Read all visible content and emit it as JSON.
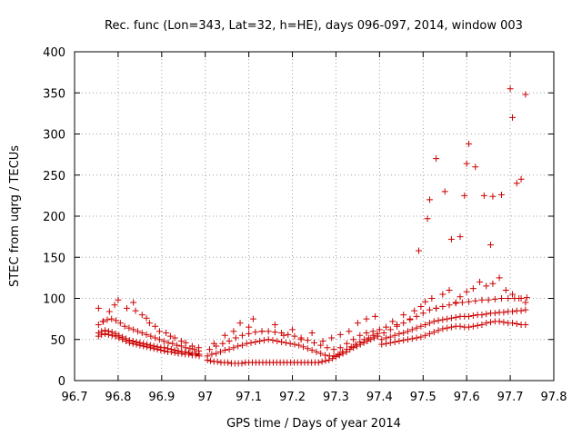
{
  "chart_data": {
    "type": "scatter",
    "title": "Rec. func (Lon=343, Lat=32, h=HE), days 096-097, 2014, window 003",
    "xlabel": "GPS time / Days of year 2014",
    "ylabel": "STEC from uqrg / TECUs",
    "xlim": [
      96.7,
      97.8
    ],
    "ylim": [
      0,
      400
    ],
    "xticks": [
      "96.7",
      "96.8",
      "96.9",
      "97",
      "97.1",
      "97.2",
      "97.3",
      "97.4",
      "97.5",
      "97.6",
      "97.7",
      "97.8"
    ],
    "yticks": [
      "0",
      "50",
      "100",
      "150",
      "200",
      "250",
      "300",
      "350",
      "400"
    ],
    "grid": true,
    "marker": "+",
    "color": "#cc0000",
    "series": [
      {
        "x": [
          96.755,
          96.762,
          96.77,
          96.778,
          96.786,
          96.794,
          96.802,
          96.81,
          96.818,
          96.826,
          96.834,
          96.842,
          96.85,
          96.858,
          96.866,
          96.874,
          96.882,
          96.89,
          96.898,
          96.906,
          96.914,
          96.922,
          96.93,
          96.938,
          96.946,
          96.954,
          96.962,
          96.97,
          96.978,
          96.986,
          96.755,
          96.762,
          96.77,
          96.778,
          96.786,
          96.794,
          96.802,
          96.81,
          96.818,
          96.826,
          96.834,
          96.842,
          96.85,
          96.858,
          96.866,
          96.874,
          96.882,
          96.89,
          96.898,
          96.906,
          96.914,
          96.922,
          96.93,
          96.938,
          96.946,
          96.954,
          96.962,
          96.97,
          96.978,
          96.986,
          96.755,
          96.765,
          96.775,
          96.785,
          96.795,
          96.805,
          96.815,
          96.825,
          96.835,
          96.845,
          96.855,
          96.865,
          96.875,
          96.885,
          96.895,
          96.905,
          96.915,
          96.925,
          96.935,
          96.945,
          96.955,
          96.965,
          96.975,
          96.985,
          96.755,
          96.766,
          96.78,
          96.792,
          96.8,
          96.82,
          96.835,
          96.84,
          96.855,
          96.865,
          96.872,
          96.885,
          96.895,
          96.91,
          96.92,
          96.93,
          96.945,
          96.955,
          96.97,
          96.985,
          97.005,
          97.012,
          97.02,
          97.028,
          97.036,
          97.044,
          97.052,
          97.06,
          97.068,
          97.076,
          97.084,
          97.092,
          97.1,
          97.108,
          97.116,
          97.124,
          97.132,
          97.14,
          97.148,
          97.156,
          97.164,
          97.172,
          97.18,
          97.188,
          97.196,
          97.204,
          97.212,
          97.22,
          97.228,
          97.236,
          97.244,
          97.252,
          97.26,
          97.268,
          97.276,
          97.284,
          97.292,
          97.3,
          97.308,
          97.316,
          97.324,
          97.332,
          97.34,
          97.348,
          97.356,
          97.364,
          97.372,
          97.38,
          97.388,
          97.396,
          97.005,
          97.015,
          97.025,
          97.035,
          97.045,
          97.055,
          97.065,
          97.075,
          97.085,
          97.095,
          97.105,
          97.115,
          97.125,
          97.135,
          97.145,
          97.155,
          97.165,
          97.175,
          97.185,
          97.195,
          97.205,
          97.215,
          97.225,
          97.235,
          97.245,
          97.255,
          97.265,
          97.275,
          97.285,
          97.295,
          97.305,
          97.315,
          97.325,
          97.335,
          97.345,
          97.355,
          97.365,
          97.375,
          97.385,
          97.395,
          97.01,
          97.025,
          97.04,
          97.055,
          97.07,
          97.085,
          97.1,
          97.115,
          97.13,
          97.145,
          97.16,
          97.175,
          97.19,
          97.205,
          97.22,
          97.235,
          97.25,
          97.265,
          97.28,
          97.295,
          97.31,
          97.325,
          97.34,
          97.355,
          97.37,
          97.385,
          97.4,
          97.02,
          97.045,
          97.065,
          97.08,
          97.1,
          97.11,
          97.13,
          97.16,
          97.18,
          97.2,
          97.22,
          97.245,
          97.27,
          97.29,
          97.31,
          97.33,
          97.35,
          97.37,
          97.39,
          97.405,
          97.415,
          97.425,
          97.435,
          97.445,
          97.455,
          97.465,
          97.475,
          97.485,
          97.495,
          97.505,
          97.515,
          97.525,
          97.535,
          97.545,
          97.555,
          97.565,
          97.575,
          97.585,
          97.595,
          97.605,
          97.615,
          97.625,
          97.635,
          97.645,
          97.655,
          97.665,
          97.675,
          97.685,
          97.695,
          97.705,
          97.715,
          97.725,
          97.735,
          97.405,
          97.415,
          97.425,
          97.435,
          97.445,
          97.455,
          97.465,
          97.475,
          97.485,
          97.495,
          97.505,
          97.515,
          97.525,
          97.535,
          97.545,
          97.555,
          97.565,
          97.575,
          97.585,
          97.595,
          97.605,
          97.615,
          97.625,
          97.635,
          97.645,
          97.655,
          97.665,
          97.675,
          97.685,
          97.695,
          97.705,
          97.715,
          97.725,
          97.735,
          97.41,
          97.425,
          97.44,
          97.455,
          97.47,
          97.485,
          97.5,
          97.515,
          97.53,
          97.545,
          97.56,
          97.575,
          97.59,
          97.605,
          97.62,
          97.635,
          97.65,
          97.665,
          97.68,
          97.695,
          97.71,
          97.725,
          97.738,
          97.415,
          97.43,
          97.44,
          97.455,
          97.47,
          97.48,
          97.495,
          97.505,
          97.52,
          97.53,
          97.545,
          97.56,
          97.575,
          97.585,
          97.6,
          97.615,
          97.63,
          97.645,
          97.66,
          97.675,
          97.69,
          97.705,
          97.72,
          97.735,
          97.49,
          97.51,
          97.515,
          97.53,
          97.55,
          97.565,
          97.585,
          97.6,
          97.605,
          97.62,
          97.64,
          97.655,
          97.68,
          97.7,
          97.705,
          97.715,
          97.725,
          97.735,
          97.66,
          97.595
        ],
        "y": [
          54,
          56,
          57,
          56,
          55,
          54,
          52,
          50,
          48,
          46,
          45,
          44,
          43,
          42,
          41,
          40,
          39,
          38,
          37,
          36,
          35,
          35,
          34,
          33,
          33,
          32,
          32,
          31,
          31,
          30,
          58,
          60,
          61,
          60,
          59,
          57,
          55,
          53,
          51,
          49,
          48,
          47,
          46,
          45,
          44,
          43,
          42,
          41,
          40,
          40,
          39,
          38,
          37,
          36,
          35,
          35,
          34,
          33,
          33,
          32,
          68,
          72,
          74,
          75,
          73,
          70,
          66,
          64,
          62,
          60,
          58,
          56,
          54,
          52,
          50,
          48,
          46,
          45,
          43,
          42,
          40,
          39,
          38,
          36,
          88,
          72,
          84,
          92,
          98,
          88,
          95,
          85,
          80,
          76,
          70,
          66,
          60,
          58,
          54,
          52,
          48,
          46,
          42,
          40,
          25,
          24,
          23,
          23,
          22,
          22,
          22,
          21,
          21,
          21,
          21,
          22,
          22,
          22,
          22,
          22,
          22,
          22,
          22,
          22,
          22,
          22,
          22,
          22,
          22,
          22,
          22,
          22,
          22,
          22,
          22,
          22,
          22,
          23,
          24,
          25,
          27,
          29,
          31,
          33,
          35,
          38,
          40,
          42,
          44,
          46,
          48,
          50,
          52,
          54,
          30,
          32,
          33,
          35,
          37,
          38,
          40,
          42,
          43,
          45,
          46,
          47,
          48,
          49,
          50,
          49,
          48,
          47,
          46,
          45,
          44,
          43,
          41,
          39,
          37,
          35,
          33,
          31,
          30,
          30,
          32,
          35,
          38,
          41,
          44,
          47,
          50,
          52,
          55,
          57,
          38,
          42,
          45,
          48,
          52,
          55,
          57,
          59,
          60,
          60,
          59,
          58,
          56,
          54,
          52,
          49,
          46,
          43,
          40,
          38,
          40,
          45,
          50,
          55,
          58,
          60,
          62,
          45,
          55,
          60,
          70,
          65,
          75,
          60,
          68,
          55,
          62,
          50,
          58,
          48,
          52,
          56,
          60,
          70,
          75,
          78,
          44,
          45,
          46,
          47,
          48,
          49,
          50,
          51,
          52,
          53,
          55,
          57,
          59,
          61,
          63,
          64,
          65,
          66,
          66,
          65,
          65,
          66,
          67,
          68,
          70,
          71,
          72,
          72,
          71,
          70,
          70,
          69,
          68,
          68,
          50,
          52,
          53,
          55,
          57,
          58,
          60,
          62,
          64,
          66,
          68,
          70,
          72,
          73,
          74,
          75,
          76,
          77,
          78,
          78,
          78,
          79,
          80,
          80,
          81,
          82,
          82,
          83,
          83,
          84,
          84,
          85,
          85,
          86,
          58,
          62,
          66,
          70,
          74,
          78,
          82,
          86,
          88,
          90,
          92,
          94,
          95,
          96,
          97,
          98,
          98,
          99,
          100,
          100,
          100,
          100,
          101,
          65,
          72,
          68,
          80,
          75,
          85,
          90,
          96,
          100,
          88,
          105,
          110,
          95,
          102,
          108,
          112,
          120,
          115,
          118,
          125,
          110,
          105,
          100,
          95,
          158,
          197,
          220,
          270,
          230,
          172,
          175,
          264,
          288,
          260,
          225,
          165,
          226,
          355,
          320,
          240,
          245,
          348,
          224,
          225
        ]
      }
    ]
  }
}
